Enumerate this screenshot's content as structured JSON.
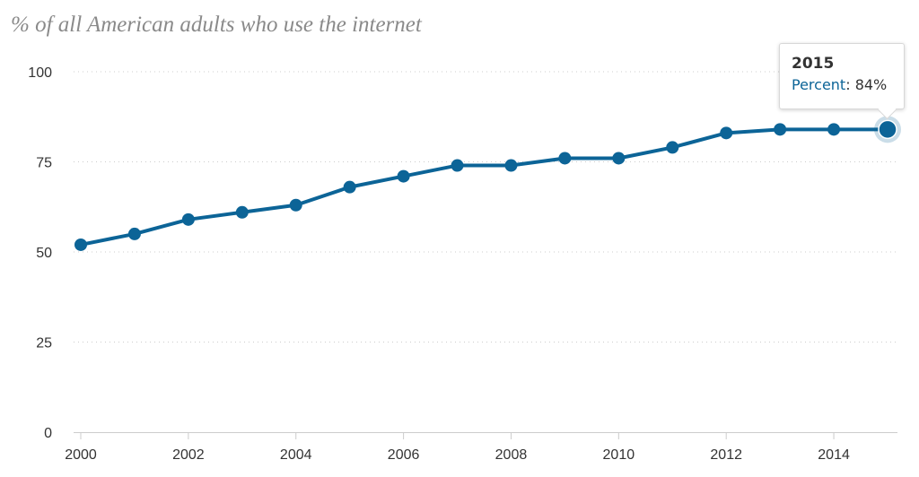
{
  "chart_data": {
    "type": "line",
    "title": "% of all American adults who use the internet",
    "xlabel": "",
    "ylabel": "",
    "xlim": [
      2000,
      2015
    ],
    "ylim": [
      0,
      100
    ],
    "x_ticks": [
      "2000",
      "2002",
      "2004",
      "2006",
      "2008",
      "2010",
      "2012",
      "2014"
    ],
    "y_ticks": [
      "0",
      "25",
      "50",
      "75",
      "100"
    ],
    "grid": true,
    "series": [
      {
        "name": "Percent",
        "color": "#0c6497",
        "x": [
          2000,
          2001,
          2002,
          2003,
          2004,
          2005,
          2006,
          2007,
          2008,
          2009,
          2010,
          2011,
          2012,
          2013,
          2014,
          2015
        ],
        "values": [
          52,
          55,
          59,
          61,
          63,
          68,
          71,
          74,
          74,
          76,
          76,
          79,
          83,
          84,
          84,
          84
        ]
      }
    ],
    "tooltip": {
      "year": "2015",
      "label": "Percent",
      "separator": ":",
      "value": "84%"
    }
  }
}
